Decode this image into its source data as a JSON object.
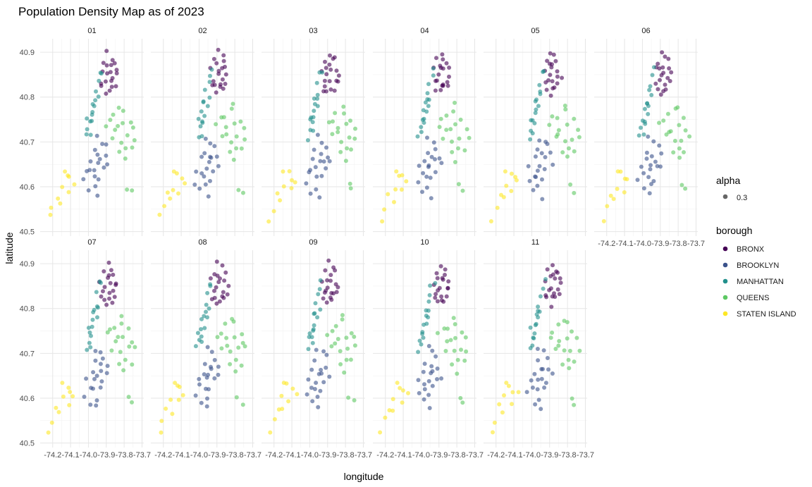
{
  "chart_data": {
    "type": "scatter",
    "title": "Population Density Map as of 2023",
    "xlabel": "longitude",
    "ylabel": "latitude",
    "xlim": [
      -74.27,
      -73.69
    ],
    "ylim": [
      40.49,
      40.93
    ],
    "x_ticks": [
      "-74.2",
      "-74.1",
      "-74.0",
      "-73.9",
      "-73.8",
      "-73.7"
    ],
    "x_tick_values": [
      -74.2,
      -74.1,
      -74.0,
      -73.9,
      -73.8,
      -73.7
    ],
    "y_ticks": [
      "40.5",
      "40.6",
      "40.7",
      "40.8",
      "40.9"
    ],
    "y_tick_values": [
      40.5,
      40.6,
      40.7,
      40.8,
      40.9
    ],
    "grid": true,
    "facets": [
      "01",
      "02",
      "03",
      "04",
      "05",
      "06",
      "07",
      "08",
      "09",
      "10",
      "11"
    ],
    "facet_layout": {
      "columns": 6,
      "rows": 2
    },
    "legend": {
      "placement": "right",
      "alpha_title": "alpha",
      "alpha_value": "0.3",
      "alpha_color": "#666666",
      "color_title": "borough",
      "entries": [
        {
          "name": "BRONX",
          "color": "#440154"
        },
        {
          "name": "BROOKLYN",
          "color": "#3B528B"
        },
        {
          "name": "MANHATTAN",
          "color": "#21908C"
        },
        {
          "name": "QUEENS",
          "color": "#5DC863"
        },
        {
          "name": "STATEN ISLAND",
          "color": "#FDE725"
        }
      ]
    },
    "series": [
      {
        "name": "BRONX",
        "color": "#440154",
        "points": [
          [
            -73.92,
            40.83
          ],
          [
            -73.9,
            40.85
          ],
          [
            -73.88,
            40.87
          ],
          [
            -73.86,
            40.84
          ],
          [
            -73.89,
            40.82
          ],
          [
            -73.91,
            40.88
          ],
          [
            -73.87,
            40.89
          ],
          [
            -73.85,
            40.86
          ],
          [
            -73.9,
            40.81
          ],
          [
            -73.88,
            40.83
          ],
          [
            -73.93,
            40.86
          ],
          [
            -73.86,
            40.88
          ],
          [
            -73.89,
            40.9
          ],
          [
            -73.84,
            40.85
          ],
          [
            -73.91,
            40.84
          ],
          [
            -73.87,
            40.82
          ],
          [
            -73.85,
            40.83
          ],
          [
            -73.9,
            40.87
          ],
          [
            -73.88,
            40.86
          ],
          [
            -73.92,
            40.82
          ]
        ]
      },
      {
        "name": "BROOKLYN",
        "color": "#3B528B",
        "points": [
          [
            -73.95,
            40.65
          ],
          [
            -73.97,
            40.68
          ],
          [
            -73.93,
            40.7
          ],
          [
            -73.99,
            40.63
          ],
          [
            -73.94,
            40.62
          ],
          [
            -73.96,
            40.6
          ],
          [
            -73.92,
            40.64
          ],
          [
            -73.9,
            40.67
          ],
          [
            -73.98,
            40.66
          ],
          [
            -74.01,
            40.64
          ],
          [
            -73.95,
            40.58
          ],
          [
            -73.93,
            40.66
          ],
          [
            -73.97,
            40.62
          ],
          [
            -73.91,
            40.69
          ],
          [
            -74.02,
            40.61
          ],
          [
            -73.96,
            40.71
          ],
          [
            -73.94,
            40.67
          ],
          [
            -73.99,
            40.59
          ],
          [
            -73.89,
            40.65
          ],
          [
            -73.96,
            40.64
          ]
        ]
      },
      {
        "name": "MANHATTAN",
        "color": "#21908C",
        "points": [
          [
            -74.01,
            40.71
          ],
          [
            -74.0,
            40.73
          ],
          [
            -73.99,
            40.75
          ],
          [
            -73.98,
            40.77
          ],
          [
            -73.97,
            40.79
          ],
          [
            -73.96,
            40.81
          ],
          [
            -73.95,
            40.83
          ],
          [
            -73.94,
            40.85
          ],
          [
            -73.93,
            40.86
          ],
          [
            -73.99,
            40.72
          ],
          [
            -73.98,
            40.74
          ],
          [
            -73.97,
            40.76
          ],
          [
            -73.96,
            40.78
          ],
          [
            -73.95,
            40.8
          ],
          [
            -74.0,
            40.75
          ],
          [
            -73.98,
            40.79
          ]
        ]
      },
      {
        "name": "QUEENS",
        "color": "#5DC863",
        "points": [
          [
            -73.85,
            40.72
          ],
          [
            -73.8,
            40.74
          ],
          [
            -73.82,
            40.7
          ],
          [
            -73.88,
            40.75
          ],
          [
            -73.78,
            40.71
          ],
          [
            -73.75,
            40.73
          ],
          [
            -73.83,
            40.68
          ],
          [
            -73.86,
            40.76
          ],
          [
            -73.79,
            40.69
          ],
          [
            -73.77,
            40.75
          ],
          [
            -73.9,
            40.74
          ],
          [
            -73.81,
            40.77
          ],
          [
            -73.84,
            40.73
          ],
          [
            -73.76,
            40.68
          ],
          [
            -73.8,
            40.66
          ],
          [
            -73.74,
            40.71
          ],
          [
            -73.87,
            40.71
          ],
          [
            -73.82,
            40.78
          ],
          [
            -73.78,
            40.6
          ],
          [
            -73.76,
            40.59
          ]
        ]
      },
      {
        "name": "STATEN ISLAND",
        "color": "#FDE725",
        "points": [
          [
            -74.15,
            40.6
          ],
          [
            -74.12,
            40.63
          ],
          [
            -74.18,
            40.58
          ],
          [
            -74.1,
            40.62
          ],
          [
            -74.2,
            40.55
          ],
          [
            -74.14,
            40.64
          ],
          [
            -74.08,
            40.61
          ],
          [
            -74.16,
            40.57
          ],
          [
            -74.22,
            40.53
          ],
          [
            -74.11,
            40.59
          ]
        ]
      }
    ]
  }
}
